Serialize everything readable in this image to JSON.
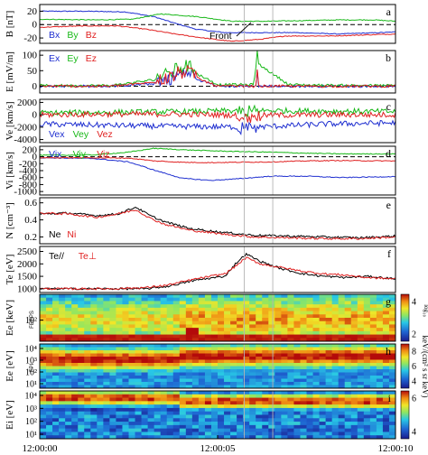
{
  "chart_data": [
    {
      "panel": "a",
      "type": "line",
      "ylabel": "B [nT]",
      "yticks": [
        20,
        0,
        -20
      ],
      "ylim": [
        -28,
        30
      ],
      "series": [
        {
          "name": "Bx",
          "color": "#1f2fd0",
          "x": [
            0,
            1.2,
            2.4,
            3.2,
            3.8,
            4.4,
            5.2,
            6.2,
            7.2,
            8.4,
            9.6,
            10
          ],
          "y": [
            20,
            20,
            19,
            12,
            2,
            -7,
            -12,
            -12,
            -12,
            -14,
            -12,
            -11
          ]
        },
        {
          "name": "By",
          "color": "#18b818",
          "x": [
            0,
            1.6,
            2.6,
            3.4,
            4.4,
            5.4,
            6.4,
            7.4,
            8.4,
            9.4,
            10
          ],
          "y": [
            8,
            7,
            8,
            16,
            12,
            5,
            5,
            6,
            7,
            7,
            5
          ]
        },
        {
          "name": "Bz",
          "color": "#e02020",
          "x": [
            0,
            1.2,
            2.2,
            3.0,
            3.8,
            4.6,
            5.4,
            6.2,
            6.9,
            8.2,
            9.4,
            10
          ],
          "y": [
            -4,
            -2,
            -2,
            -7,
            -14,
            -20,
            -25,
            -22,
            -17,
            -17,
            -15,
            -14
          ]
        }
      ],
      "annotations": [
        "Front"
      ]
    },
    {
      "panel": "b",
      "type": "line",
      "ylabel": "E [mV/m]",
      "yticks": [
        100,
        50,
        0
      ],
      "ylim": [
        -22,
        115
      ],
      "series": [
        {
          "name": "Ex",
          "color": "#1f2fd0",
          "x": [
            0,
            2,
            3.5,
            4.1,
            5,
            6,
            7,
            8,
            10
          ],
          "y": [
            0,
            0,
            10,
            35,
            0,
            0,
            0,
            0,
            0
          ]
        },
        {
          "name": "Ey",
          "color": "#18b818",
          "x": [
            0,
            2,
            3.5,
            4.1,
            5,
            6,
            6.1,
            7,
            8,
            10
          ],
          "y": [
            2,
            2,
            25,
            60,
            5,
            5,
            75,
            5,
            3,
            2
          ]
        },
        {
          "name": "Ez",
          "color": "#e02020",
          "x": [
            0,
            2,
            3.5,
            4.1,
            5,
            6,
            7,
            8,
            10
          ],
          "y": [
            0,
            0,
            15,
            40,
            0,
            0,
            0,
            0,
            0
          ]
        }
      ]
    },
    {
      "panel": "c",
      "type": "line",
      "ylabel": "Ve [km/s]",
      "yticks": [
        2000,
        0,
        -2000,
        -4000
      ],
      "ylim": [
        -4500,
        2500
      ],
      "series": [
        {
          "name": "Vex",
          "color": "#1f2fd0",
          "x": [
            0,
            2,
            4,
            6,
            8,
            10
          ],
          "y": [
            -1500,
            -1700,
            -1900,
            -2000,
            -1500,
            -1300
          ]
        },
        {
          "name": "Vey",
          "color": "#18b818",
          "x": [
            0,
            2,
            4,
            6,
            8,
            10
          ],
          "y": [
            300,
            400,
            500,
            700,
            600,
            500
          ]
        },
        {
          "name": "Vez",
          "color": "#e02020",
          "x": [
            0,
            2,
            4,
            6,
            8,
            10
          ],
          "y": [
            0,
            100,
            100,
            -100,
            0,
            0
          ]
        }
      ]
    },
    {
      "panel": "d",
      "type": "line",
      "ylabel": "Vi [km/s]",
      "yticks": [
        200,
        0,
        -200,
        -400,
        -600,
        -800,
        -1000
      ],
      "ylim": [
        -1100,
        300
      ],
      "series": [
        {
          "name": "Vix",
          "color": "#1f2fd0",
          "x": [
            0,
            1.5,
            2.5,
            3.2,
            4,
            4.8,
            5.5,
            6.5,
            7.5,
            8.5,
            9.5,
            10
          ],
          "y": [
            -30,
            -50,
            -150,
            -380,
            -620,
            -680,
            -640,
            -560,
            -560,
            -600,
            -580,
            -570
          ]
        },
        {
          "name": "Viy",
          "color": "#18b818",
          "x": [
            0,
            1.5,
            2.5,
            3.2,
            4,
            4.8,
            5.5,
            6.5,
            7.5,
            8.5,
            9.5,
            10
          ],
          "y": [
            40,
            50,
            130,
            240,
            200,
            170,
            150,
            130,
            100,
            80,
            80,
            80
          ]
        },
        {
          "name": "Viz",
          "color": "#e02020",
          "x": [
            0,
            1.5,
            2.5,
            3.2,
            4,
            4.8,
            5.5,
            6.5,
            7.5,
            8.5,
            9.5,
            10
          ],
          "y": [
            -30,
            -30,
            -40,
            -120,
            -160,
            -170,
            -160,
            -150,
            -120,
            -110,
            -120,
            -120
          ]
        }
      ]
    },
    {
      "panel": "e",
      "type": "line",
      "ylabel": "N [cm⁻³]",
      "yticks": [
        0.6,
        0.4,
        0.2
      ],
      "ylim": [
        0.12,
        0.66
      ],
      "series": [
        {
          "name": "Ne",
          "color": "#000000",
          "x": [
            0,
            0.8,
            1.6,
            2.2,
            2.7,
            3.1,
            3.5,
            4.2,
            5,
            6,
            7,
            8,
            9,
            10
          ],
          "y": [
            0.47,
            0.48,
            0.45,
            0.47,
            0.55,
            0.45,
            0.38,
            0.3,
            0.26,
            0.22,
            0.21,
            0.2,
            0.19,
            0.21
          ]
        },
        {
          "name": "Ni",
          "color": "#e02020",
          "x": [
            0,
            0.8,
            1.6,
            2.2,
            2.7,
            3.1,
            3.5,
            4.2,
            5,
            6,
            7,
            8,
            9,
            10
          ],
          "y": [
            0.48,
            0.47,
            0.43,
            0.47,
            0.52,
            0.42,
            0.35,
            0.28,
            0.24,
            0.2,
            0.19,
            0.18,
            0.18,
            0.2
          ]
        }
      ]
    },
    {
      "panel": "f",
      "type": "line",
      "ylabel": "Te [eV]",
      "yticks": [
        2500,
        2000,
        1500,
        1000
      ],
      "ylim": [
        850,
        2700
      ],
      "series": [
        {
          "name": "Te//",
          "color": "#000000",
          "x": [
            0,
            1,
            2,
            3,
            3.6,
            4.4,
            5.2,
            5.5,
            5.8,
            6.2,
            6.8,
            7.4,
            8,
            8.6,
            9.2,
            10
          ],
          "y": [
            1000,
            1000,
            1000,
            1000,
            1100,
            1350,
            1500,
            2000,
            2400,
            2100,
            1800,
            1600,
            1500,
            1450,
            1500,
            1400
          ]
        },
        {
          "name": "Te⊥",
          "color": "#e02020",
          "x": [
            0,
            1,
            2,
            3,
            3.6,
            4.4,
            5.2,
            5.5,
            5.8,
            6.2,
            6.8,
            7.4,
            8,
            8.6,
            9.2,
            10
          ],
          "y": [
            1000,
            1000,
            1000,
            1050,
            1150,
            1400,
            1600,
            1900,
            2250,
            2000,
            1850,
            1700,
            1600,
            1550,
            1450,
            1400
          ]
        }
      ]
    },
    {
      "panel": "g",
      "type": "heatmap",
      "ylabel": "Ee [keV]",
      "sublabel": "FEEPS",
      "yticks": [
        "10²"
      ],
      "colorbar": {
        "ticks": [
          "4",
          "2"
        ],
        "label": "log₁₀"
      }
    },
    {
      "panel": "h",
      "type": "heatmap",
      "ylabel": "Ee [eV]",
      "sublabel": "FPI",
      "yticks": [
        "10⁴",
        "10³",
        "10²",
        "10¹"
      ],
      "colorbar": {
        "ticks": [
          "8",
          "6",
          "4"
        ],
        "label": "keV/(cm² s sr keV)"
      }
    },
    {
      "panel": "i",
      "type": "heatmap",
      "ylabel": "Ei [eV]",
      "yticks": [
        "10⁴",
        "10³",
        "10²",
        "10¹"
      ],
      "colorbar": {
        "ticks": [
          "6",
          "4"
        ]
      }
    }
  ],
  "xticks": [
    "12:00:00",
    "12:00:05",
    "12:00:10"
  ],
  "annotations": {
    "front": "Front"
  }
}
